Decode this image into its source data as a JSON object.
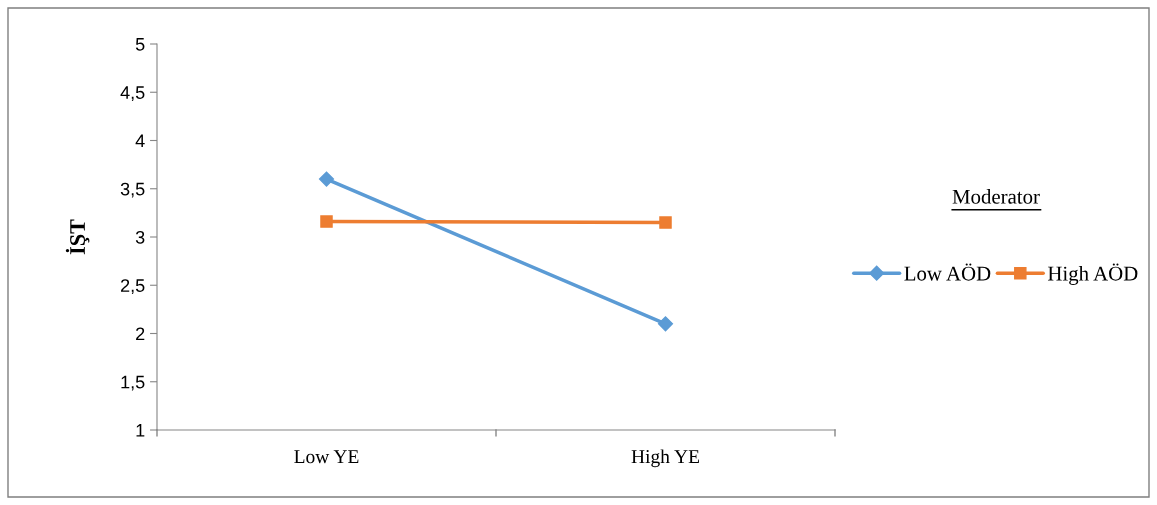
{
  "chart_data": {
    "type": "line",
    "ylabel": "İŞT",
    "legend_title": "Moderator",
    "categories": [
      "Low YE",
      "High YE"
    ],
    "series": [
      {
        "name": "Low AÖD",
        "color": "#5b9bd5",
        "values": [
          3.6,
          2.1
        ],
        "marker": "diamond"
      },
      {
        "name": "High AÖD",
        "color": "#ed7d31",
        "values": [
          3.16,
          3.15
        ],
        "marker": "square"
      }
    ],
    "ylim": [
      1,
      5
    ],
    "yticks": [
      1,
      {
        "value": 1.5,
        "label": "1,5"
      },
      2,
      {
        "value": 2.5,
        "label": "2,5"
      },
      3,
      {
        "value": 3.5,
        "label": "3,5"
      },
      4,
      {
        "value": 4.5,
        "label": "4,5"
      },
      5
    ],
    "grid": false,
    "legend": "right",
    "line_style": "solid"
  }
}
